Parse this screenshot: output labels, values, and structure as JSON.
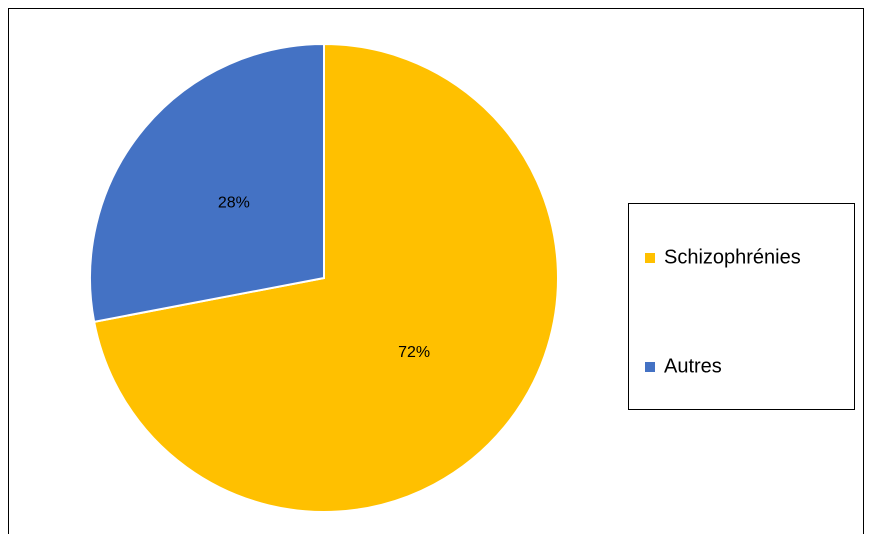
{
  "chart_data": {
    "type": "pie",
    "categories": [
      "Schizophrénies",
      "Autres"
    ],
    "values": [
      72,
      28
    ],
    "value_labels": [
      "72%",
      "28%"
    ],
    "colors": [
      "#FFC000",
      "#4472C4"
    ],
    "legend": "right"
  }
}
